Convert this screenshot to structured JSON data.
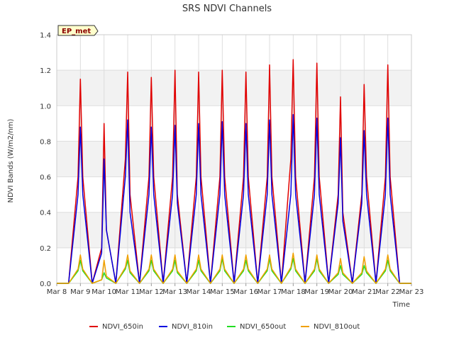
{
  "chart_data": {
    "type": "line",
    "title": "SRS NDVI Channels",
    "xlabel": "Time",
    "ylabel": "NDVI Bands (W/m2/nm)",
    "badge": "EP_met",
    "ylim": [
      0,
      1.4
    ],
    "yticks": [
      "0.0",
      "0.2",
      "0.4",
      "0.6",
      "0.8",
      "1.0",
      "1.2",
      "1.4"
    ],
    "xlim": [
      8,
      23
    ],
    "xticks": [
      "Mar 8",
      "Mar 9",
      "Mar 10",
      "Mar 11",
      "Mar 12",
      "Mar 13",
      "Mar 14",
      "Mar 15",
      "Mar 16",
      "Mar 17",
      "Mar 18",
      "Mar 19",
      "Mar 20",
      "Mar 21",
      "Mar 22",
      "Mar 23"
    ],
    "grid": true,
    "legend_position": "bottom",
    "x": [
      8.0,
      8.5,
      8.9,
      9.0,
      9.1,
      9.5,
      9.9,
      10.0,
      10.1,
      10.5,
      10.9,
      11.0,
      11.1,
      11.5,
      11.9,
      12.0,
      12.1,
      12.5,
      12.9,
      13.0,
      13.1,
      13.5,
      13.9,
      14.0,
      14.1,
      14.5,
      14.9,
      15.0,
      15.1,
      15.5,
      15.9,
      16.0,
      16.1,
      16.5,
      16.9,
      17.0,
      17.1,
      17.5,
      17.9,
      18.0,
      18.1,
      18.5,
      18.9,
      19.0,
      19.1,
      19.5,
      19.9,
      20.0,
      20.1,
      20.5,
      20.9,
      21.0,
      21.1,
      21.5,
      21.9,
      22.0,
      22.1,
      22.5,
      23.0
    ],
    "series": [
      {
        "name": "NDVI_650in",
        "color": "#e00000",
        "values": [
          0,
          0,
          0.6,
          1.15,
          0.6,
          0,
          0.2,
          0.9,
          0.3,
          0,
          0.7,
          1.19,
          0.5,
          0,
          0.6,
          1.16,
          0.6,
          0,
          0.6,
          1.2,
          0.5,
          0,
          0.6,
          1.19,
          0.6,
          0,
          0.6,
          1.2,
          0.6,
          0,
          0.6,
          1.19,
          0.6,
          0,
          0.6,
          1.23,
          0.6,
          0,
          0.7,
          1.26,
          0.6,
          0,
          0.6,
          1.24,
          0.6,
          0,
          0.5,
          1.05,
          0.4,
          0,
          0.5,
          1.12,
          0.6,
          0,
          0.6,
          1.23,
          0.6,
          0,
          0
        ]
      },
      {
        "name": "NDVI_810in",
        "color": "#0000e0",
        "values": [
          0,
          0,
          0.5,
          0.88,
          0.5,
          0,
          0.17,
          0.7,
          0.3,
          0,
          0.6,
          0.92,
          0.4,
          0,
          0.5,
          0.88,
          0.5,
          0,
          0.5,
          0.89,
          0.45,
          0,
          0.5,
          0.9,
          0.5,
          0,
          0.5,
          0.91,
          0.5,
          0,
          0.5,
          0.9,
          0.5,
          0,
          0.5,
          0.92,
          0.5,
          0,
          0.5,
          0.95,
          0.5,
          0,
          0.5,
          0.93,
          0.5,
          0,
          0.45,
          0.82,
          0.35,
          0,
          0.45,
          0.86,
          0.5,
          0,
          0.5,
          0.93,
          0.5,
          0,
          0
        ]
      },
      {
        "name": "NDVI_650out",
        "color": "#22dd22",
        "values": [
          0,
          0,
          0.07,
          0.13,
          0.07,
          0,
          0.02,
          0.06,
          0.03,
          0,
          0.08,
          0.13,
          0.06,
          0,
          0.07,
          0.13,
          0.07,
          0,
          0.07,
          0.13,
          0.06,
          0,
          0.07,
          0.13,
          0.07,
          0,
          0.07,
          0.14,
          0.07,
          0,
          0.07,
          0.13,
          0.07,
          0,
          0.07,
          0.14,
          0.07,
          0,
          0.08,
          0.14,
          0.07,
          0,
          0.07,
          0.14,
          0.07,
          0,
          0.05,
          0.1,
          0.05,
          0,
          0.05,
          0.1,
          0.06,
          0,
          0.07,
          0.13,
          0.07,
          0,
          0
        ]
      },
      {
        "name": "NDVI_810out",
        "color": "#f0a000",
        "values": [
          0,
          0,
          0.08,
          0.16,
          0.08,
          0,
          0.02,
          0.13,
          0.04,
          0,
          0.09,
          0.16,
          0.07,
          0,
          0.08,
          0.16,
          0.08,
          0,
          0.08,
          0.16,
          0.07,
          0,
          0.08,
          0.16,
          0.08,
          0,
          0.08,
          0.16,
          0.08,
          0,
          0.08,
          0.16,
          0.08,
          0,
          0.08,
          0.16,
          0.08,
          0,
          0.09,
          0.17,
          0.08,
          0,
          0.08,
          0.16,
          0.08,
          0,
          0.06,
          0.14,
          0.06,
          0,
          0.06,
          0.15,
          0.07,
          0,
          0.08,
          0.16,
          0.08,
          0,
          0
        ]
      }
    ]
  }
}
